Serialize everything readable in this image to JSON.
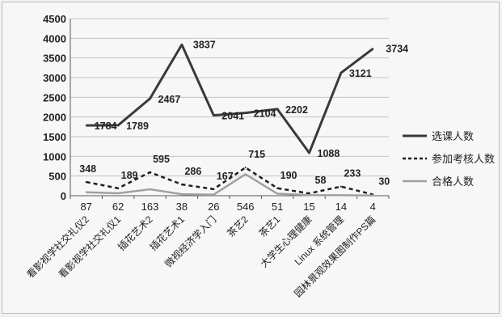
{
  "chart_data": {
    "type": "line",
    "categories": [
      "看影视学社交礼仪2",
      "看影视学社交礼仪1",
      "插花艺术2",
      "插花艺术1",
      "微视经济学入门",
      "茶艺2",
      "茶艺1",
      "大学生心理健康",
      "Linux 系统管理",
      "园林景观效果图制作PS篇"
    ],
    "x_values": [
      "87",
      "62",
      "163",
      "38",
      "26",
      "546",
      "51",
      "15",
      "14",
      "4"
    ],
    "ylim": [
      0,
      4500
    ],
    "yticks": [
      "0",
      "500",
      "1000",
      "1500",
      "2000",
      "2500",
      "3000",
      "3500",
      "4000",
      "4500"
    ],
    "grid": true,
    "legend_position": "right",
    "series": [
      {
        "name": "选课人数",
        "style": "solid",
        "color": "#3a3a3a",
        "values": [
          1784,
          1789,
          2467,
          3837,
          2041,
          2104,
          2202,
          1088,
          3121,
          3734
        ],
        "labels": [
          "1784",
          "1789",
          "2467",
          "3837",
          "2041",
          "2104",
          "2202",
          "1088",
          "3121",
          "3734"
        ]
      },
      {
        "name": "参加考核人数",
        "style": "dotted",
        "color": "#1f1f1f",
        "values": [
          348,
          189,
          595,
          286,
          167,
          715,
          190,
          58,
          233,
          30
        ],
        "labels": [
          "348",
          "189",
          "595",
          "286",
          "167",
          "715",
          "190",
          "58",
          "233",
          "30"
        ]
      },
      {
        "name": "合格人数",
        "style": "solid",
        "color": "#a0a0a0",
        "values": [
          87,
          62,
          163,
          38,
          26,
          546,
          51,
          15,
          14,
          4
        ],
        "labels": []
      }
    ]
  }
}
